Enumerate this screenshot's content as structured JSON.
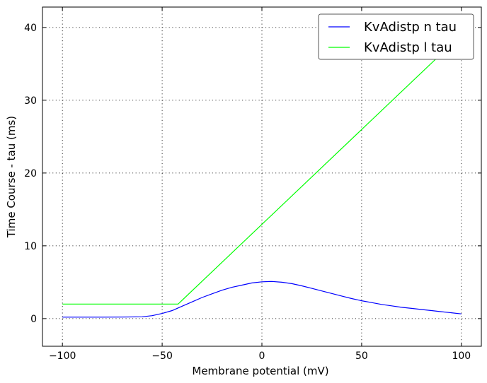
{
  "chart_data": {
    "type": "line",
    "title": "",
    "xlabel": "Membrane potential (mV)",
    "ylabel": "Time Course - tau (ms)",
    "xlim": [
      -110,
      110
    ],
    "ylim": [
      -3.8,
      42.8
    ],
    "xticks": [
      -100,
      -50,
      0,
      50,
      100
    ],
    "yticks": [
      0,
      10,
      20,
      30,
      40
    ],
    "xtick_labels": [
      "−100",
      "−50",
      "0",
      "50",
      "100"
    ],
    "ytick_labels": [
      "0",
      "10",
      "20",
      "30",
      "40"
    ],
    "grid": true,
    "legend": "top-right",
    "series": [
      {
        "name": "KvAdistp n tau",
        "color": "#0000ff",
        "x": [
          -100,
          -90,
          -80,
          -70,
          -60,
          -55,
          -50,
          -45,
          -40,
          -35,
          -30,
          -25,
          -20,
          -15,
          -10,
          -5,
          0,
          5,
          10,
          15,
          20,
          25,
          30,
          35,
          40,
          45,
          50,
          55,
          60,
          65,
          70,
          75,
          80,
          85,
          90,
          95,
          100
        ],
        "y": [
          0.2,
          0.2,
          0.2,
          0.21,
          0.25,
          0.4,
          0.7,
          1.1,
          1.7,
          2.3,
          2.9,
          3.4,
          3.9,
          4.3,
          4.6,
          4.9,
          5.05,
          5.1,
          5.0,
          4.8,
          4.5,
          4.15,
          3.8,
          3.45,
          3.1,
          2.75,
          2.45,
          2.2,
          1.95,
          1.75,
          1.55,
          1.4,
          1.25,
          1.1,
          0.95,
          0.8,
          0.65
        ]
      },
      {
        "name": "KvAdistp l tau",
        "color": "#00ff00",
        "x": [
          -100,
          -42,
          100
        ],
        "y": [
          2,
          2,
          39
        ]
      }
    ]
  }
}
